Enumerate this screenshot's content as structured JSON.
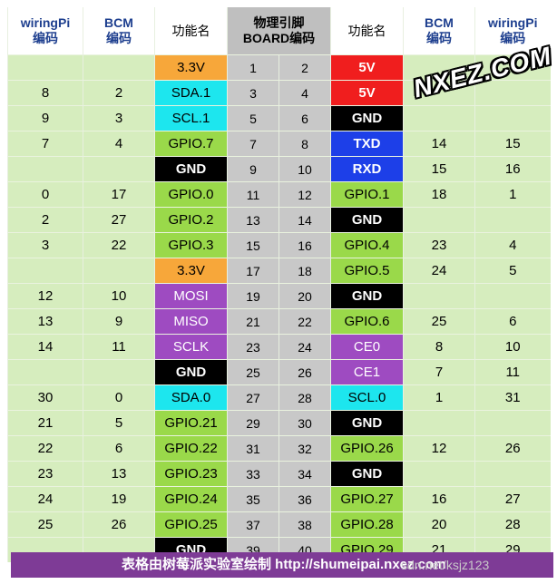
{
  "headers": {
    "wiringpi_left": "wiringPi\n编码",
    "bcm_left": "BCM\n编码",
    "func_left": "功能名",
    "board": "物理引脚\nBOARD编码",
    "func_right": "功能名",
    "bcm_right": "BCM\n编码",
    "wiringpi_right": "wiringPi\n编码"
  },
  "colors": {
    "orange": "#f7a73a",
    "red": "#f01e1e",
    "cyan": "#1de6ee",
    "green": "#9ad94a",
    "black": "#000000",
    "blue": "#1d3fe8",
    "purple": "#9e4bc1",
    "number_bg": "#d6edbe",
    "board_bg": "#c8c8c8",
    "footer_bg": "#7e3b96"
  },
  "rows": [
    {
      "lwpi": "",
      "lbcm": "",
      "lfunc": "3.3V",
      "lcolor": "orange",
      "lpin": "1",
      "rpin": "2",
      "rfunc": "5V",
      "rcolor": "red",
      "rbcm": "",
      "rwpi": ""
    },
    {
      "lwpi": "8",
      "lbcm": "2",
      "lfunc": "SDA.1",
      "lcolor": "cyan",
      "lpin": "3",
      "rpin": "4",
      "rfunc": "5V",
      "rcolor": "red",
      "rbcm": "",
      "rwpi": ""
    },
    {
      "lwpi": "9",
      "lbcm": "3",
      "lfunc": "SCL.1",
      "lcolor": "cyan",
      "lpin": "5",
      "rpin": "6",
      "rfunc": "GND",
      "rcolor": "black",
      "rbcm": "",
      "rwpi": ""
    },
    {
      "lwpi": "7",
      "lbcm": "4",
      "lfunc": "GPIO.7",
      "lcolor": "green",
      "lpin": "7",
      "rpin": "8",
      "rfunc": "TXD",
      "rcolor": "blue",
      "rbcm": "14",
      "rwpi": "15"
    },
    {
      "lwpi": "",
      "lbcm": "",
      "lfunc": "GND",
      "lcolor": "black",
      "lpin": "9",
      "rpin": "10",
      "rfunc": "RXD",
      "rcolor": "blue",
      "rbcm": "15",
      "rwpi": "16"
    },
    {
      "lwpi": "0",
      "lbcm": "17",
      "lfunc": "GPIO.0",
      "lcolor": "green",
      "lpin": "11",
      "rpin": "12",
      "rfunc": "GPIO.1",
      "rcolor": "green",
      "rbcm": "18",
      "rwpi": "1"
    },
    {
      "lwpi": "2",
      "lbcm": "27",
      "lfunc": "GPIO.2",
      "lcolor": "green",
      "lpin": "13",
      "rpin": "14",
      "rfunc": "GND",
      "rcolor": "black",
      "rbcm": "",
      "rwpi": ""
    },
    {
      "lwpi": "3",
      "lbcm": "22",
      "lfunc": "GPIO.3",
      "lcolor": "green",
      "lpin": "15",
      "rpin": "16",
      "rfunc": "GPIO.4",
      "rcolor": "green",
      "rbcm": "23",
      "rwpi": "4"
    },
    {
      "lwpi": "",
      "lbcm": "",
      "lfunc": "3.3V",
      "lcolor": "orange",
      "lpin": "17",
      "rpin": "18",
      "rfunc": "GPIO.5",
      "rcolor": "green",
      "rbcm": "24",
      "rwpi": "5"
    },
    {
      "lwpi": "12",
      "lbcm": "10",
      "lfunc": "MOSI",
      "lcolor": "purple",
      "lpin": "19",
      "rpin": "20",
      "rfunc": "GND",
      "rcolor": "black",
      "rbcm": "",
      "rwpi": ""
    },
    {
      "lwpi": "13",
      "lbcm": "9",
      "lfunc": "MISO",
      "lcolor": "purple",
      "lpin": "21",
      "rpin": "22",
      "rfunc": "GPIO.6",
      "rcolor": "green",
      "rbcm": "25",
      "rwpi": "6"
    },
    {
      "lwpi": "14",
      "lbcm": "11",
      "lfunc": "SCLK",
      "lcolor": "purple",
      "lpin": "23",
      "rpin": "24",
      "rfunc": "CE0",
      "rcolor": "purple",
      "rbcm": "8",
      "rwpi": "10"
    },
    {
      "lwpi": "",
      "lbcm": "",
      "lfunc": "GND",
      "lcolor": "black",
      "lpin": "25",
      "rpin": "26",
      "rfunc": "CE1",
      "rcolor": "purple",
      "rbcm": "7",
      "rwpi": "11"
    },
    {
      "lwpi": "30",
      "lbcm": "0",
      "lfunc": "SDA.0",
      "lcolor": "cyan",
      "lpin": "27",
      "rpin": "28",
      "rfunc": "SCL.0",
      "rcolor": "cyan",
      "rbcm": "1",
      "rwpi": "31"
    },
    {
      "lwpi": "21",
      "lbcm": "5",
      "lfunc": "GPIO.21",
      "lcolor": "green",
      "lpin": "29",
      "rpin": "30",
      "rfunc": "GND",
      "rcolor": "black",
      "rbcm": "",
      "rwpi": ""
    },
    {
      "lwpi": "22",
      "lbcm": "6",
      "lfunc": "GPIO.22",
      "lcolor": "green",
      "lpin": "31",
      "rpin": "32",
      "rfunc": "GPIO.26",
      "rcolor": "green",
      "rbcm": "12",
      "rwpi": "26"
    },
    {
      "lwpi": "23",
      "lbcm": "13",
      "lfunc": "GPIO.23",
      "lcolor": "green",
      "lpin": "33",
      "rpin": "34",
      "rfunc": "GND",
      "rcolor": "black",
      "rbcm": "",
      "rwpi": ""
    },
    {
      "lwpi": "24",
      "lbcm": "19",
      "lfunc": "GPIO.24",
      "lcolor": "green",
      "lpin": "35",
      "rpin": "36",
      "rfunc": "GPIO.27",
      "rcolor": "green",
      "rbcm": "16",
      "rwpi": "27"
    },
    {
      "lwpi": "25",
      "lbcm": "26",
      "lfunc": "GPIO.25",
      "lcolor": "green",
      "lpin": "37",
      "rpin": "38",
      "rfunc": "GPIO.28",
      "rcolor": "green",
      "rbcm": "20",
      "rwpi": "28"
    },
    {
      "lwpi": "",
      "lbcm": "",
      "lfunc": "GND",
      "lcolor": "black",
      "lpin": "39",
      "rpin": "40",
      "rfunc": "GPIO.29",
      "rcolor": "green",
      "rbcm": "21",
      "rwpi": "29"
    }
  ],
  "watermark": "NXEZ.COM",
  "footer": {
    "text": "表格由树莓派实验室绘制 http://shumeipai.nxez.com",
    "overlay": "sdn.net/ksjz123"
  }
}
